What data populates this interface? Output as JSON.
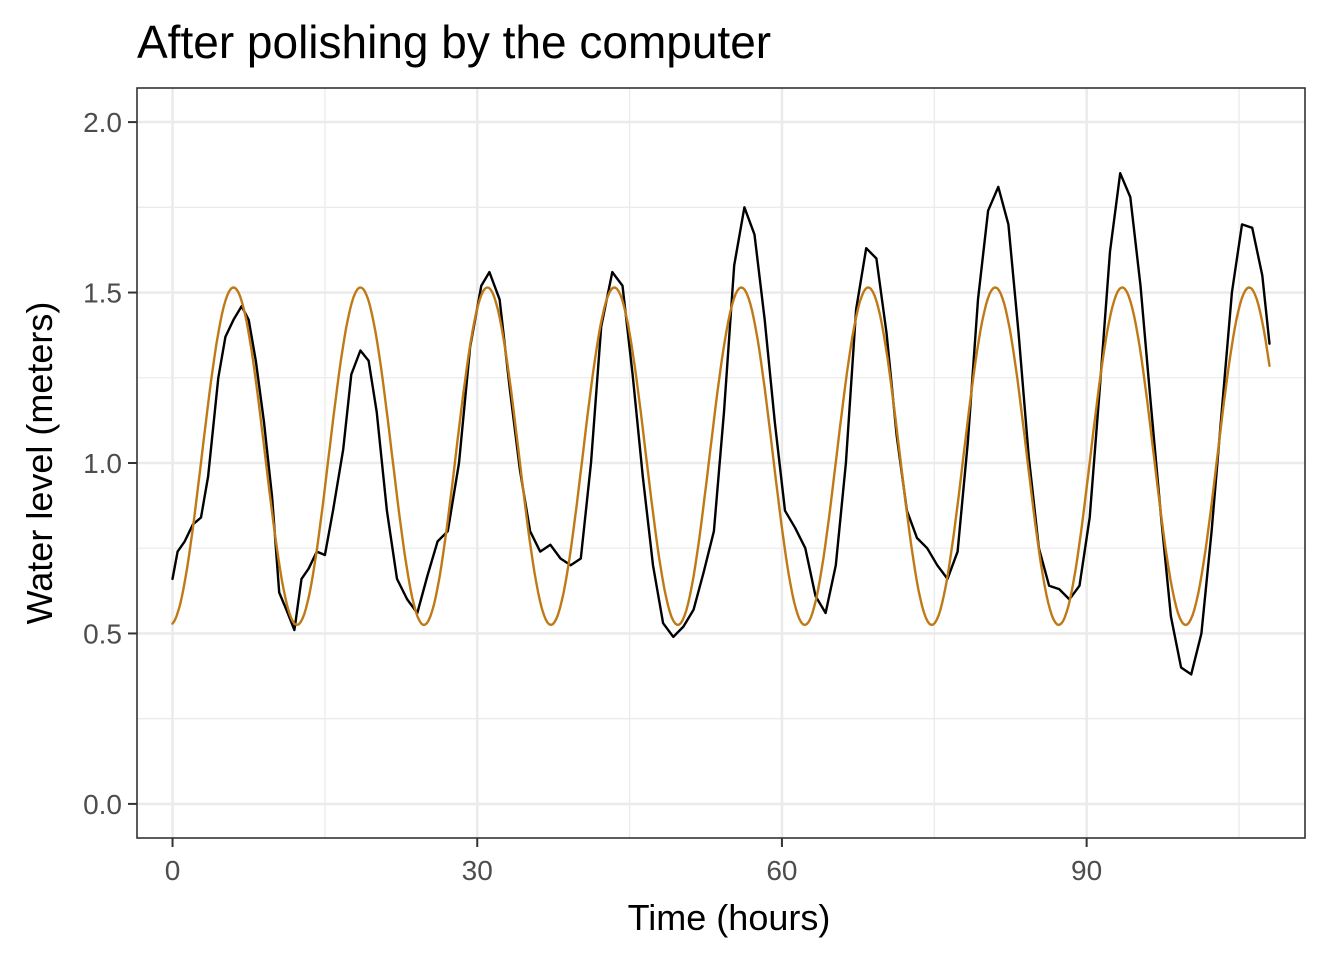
{
  "chart_data": {
    "type": "line",
    "title": "After polishing by the computer",
    "xlabel": "Time (hours)",
    "ylabel": "Water level (meters)",
    "xlim": [
      -3.5,
      111.5
    ],
    "ylim": [
      -0.1,
      2.1
    ],
    "x_ticks": [
      0,
      30,
      60,
      90
    ],
    "x_tick_labels": [
      "0",
      "30",
      "60",
      "90"
    ],
    "x_minor_ticks": [
      15,
      45,
      75,
      105
    ],
    "y_ticks": [
      0.0,
      0.5,
      1.0,
      1.5,
      2.0
    ],
    "y_tick_labels": [
      "0.0",
      "0.5",
      "1.0",
      "1.5",
      "2.0"
    ],
    "y_minor_ticks": [
      0.25,
      0.75,
      1.25,
      1.75
    ],
    "grid": true,
    "legend": "none",
    "series": [
      {
        "color": "#000000",
        "points": [
          [
            0,
            0.66
          ],
          [
            0.5,
            0.74
          ],
          [
            1.2,
            0.77
          ],
          [
            2,
            0.82
          ],
          [
            2.8,
            0.84
          ],
          [
            3.5,
            0.96
          ],
          [
            4.5,
            1.25
          ],
          [
            5.2,
            1.37
          ],
          [
            6,
            1.42
          ],
          [
            6.8,
            1.46
          ],
          [
            7.5,
            1.42
          ],
          [
            8.2,
            1.3
          ],
          [
            9,
            1.12
          ],
          [
            9.8,
            0.9
          ],
          [
            10.5,
            0.62
          ],
          [
            11.2,
            0.57
          ],
          [
            12,
            0.51
          ],
          [
            12.7,
            0.66
          ],
          [
            13.4,
            0.69
          ],
          [
            14.2,
            0.74
          ],
          [
            15,
            0.73
          ],
          [
            15.8,
            0.86
          ],
          [
            16.8,
            1.04
          ],
          [
            17.6,
            1.26
          ],
          [
            18.5,
            1.33
          ],
          [
            19.3,
            1.3
          ],
          [
            20.1,
            1.15
          ],
          [
            21.1,
            0.86
          ],
          [
            22.1,
            0.66
          ],
          [
            23.1,
            0.6
          ],
          [
            24.1,
            0.56
          ],
          [
            25.1,
            0.67
          ],
          [
            26.1,
            0.77
          ],
          [
            27.1,
            0.8
          ],
          [
            28.2,
            1.0
          ],
          [
            29.3,
            1.34
          ],
          [
            30.4,
            1.52
          ],
          [
            31.2,
            1.56
          ],
          [
            32.2,
            1.48
          ],
          [
            33.2,
            1.22
          ],
          [
            34.2,
            0.98
          ],
          [
            35.2,
            0.8
          ],
          [
            36.2,
            0.74
          ],
          [
            37.2,
            0.76
          ],
          [
            38.2,
            0.72
          ],
          [
            39.2,
            0.7
          ],
          [
            40.2,
            0.72
          ],
          [
            41.2,
            1.0
          ],
          [
            42.2,
            1.4
          ],
          [
            43.3,
            1.56
          ],
          [
            44.3,
            1.52
          ],
          [
            45.3,
            1.26
          ],
          [
            46.3,
            0.96
          ],
          [
            47.3,
            0.7
          ],
          [
            48.3,
            0.53
          ],
          [
            49.3,
            0.49
          ],
          [
            50.3,
            0.52
          ],
          [
            51.3,
            0.57
          ],
          [
            52.3,
            0.68
          ],
          [
            53.3,
            0.8
          ],
          [
            54.3,
            1.15
          ],
          [
            55.3,
            1.58
          ],
          [
            56.3,
            1.75
          ],
          [
            57.3,
            1.67
          ],
          [
            58.3,
            1.42
          ],
          [
            59.3,
            1.12
          ],
          [
            60.3,
            0.86
          ],
          [
            61.3,
            0.81
          ],
          [
            62.3,
            0.75
          ],
          [
            63.3,
            0.61
          ],
          [
            64.3,
            0.56
          ],
          [
            65.3,
            0.7
          ],
          [
            66.3,
            1.0
          ],
          [
            67.3,
            1.45
          ],
          [
            68.3,
            1.63
          ],
          [
            69.3,
            1.6
          ],
          [
            70.3,
            1.38
          ],
          [
            71.3,
            1.08
          ],
          [
            72.3,
            0.86
          ],
          [
            73.3,
            0.78
          ],
          [
            74.3,
            0.75
          ],
          [
            75.3,
            0.7
          ],
          [
            76.3,
            0.66
          ],
          [
            77.3,
            0.74
          ],
          [
            78.3,
            1.06
          ],
          [
            79.3,
            1.48
          ],
          [
            80.3,
            1.74
          ],
          [
            81.3,
            1.81
          ],
          [
            82.3,
            1.7
          ],
          [
            83.3,
            1.38
          ],
          [
            84.3,
            1.02
          ],
          [
            85.3,
            0.75
          ],
          [
            86.3,
            0.64
          ],
          [
            87.3,
            0.63
          ],
          [
            88.3,
            0.6
          ],
          [
            89.3,
            0.64
          ],
          [
            90.3,
            0.84
          ],
          [
            91.3,
            1.22
          ],
          [
            92.3,
            1.62
          ],
          [
            93.3,
            1.85
          ],
          [
            94.3,
            1.78
          ],
          [
            95.3,
            1.52
          ],
          [
            96.3,
            1.18
          ],
          [
            97.3,
            0.85
          ],
          [
            98.3,
            0.55
          ],
          [
            99.3,
            0.4
          ],
          [
            100.3,
            0.38
          ],
          [
            101.3,
            0.5
          ],
          [
            102.3,
            0.8
          ],
          [
            103.3,
            1.15
          ],
          [
            104.3,
            1.5
          ],
          [
            105.3,
            1.7
          ],
          [
            106.3,
            1.69
          ],
          [
            107.3,
            1.55
          ],
          [
            108,
            1.35
          ]
        ]
      },
      {
        "color": "#bf7a17",
        "model": {
          "form": "mean + amplitude * cos(2*pi*(t - phase)/period)",
          "mean": 1.02,
          "amplitude": 0.495,
          "period": 12.5,
          "phase": 6.0,
          "t_range": [
            0,
            108
          ]
        }
      }
    ]
  }
}
